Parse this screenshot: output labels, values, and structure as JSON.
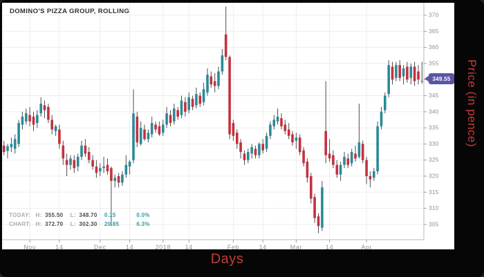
{
  "title": "DOMINO'S PIZZA GROUP, ROLLING",
  "badge": {
    "value": "349.55",
    "color": "#5b55a5"
  },
  "stats": {
    "rows": [
      {
        "label": "TODAY:",
        "h_key": "H:",
        "high": "355.50",
        "l_key": "L:",
        "low": "348.70",
        "change": "0.15",
        "pct": "0.0%"
      },
      {
        "label": "CHART:",
        "h_key": "H:",
        "high": "372.70",
        "l_key": "L:",
        "low": "302.30",
        "change": "20.85",
        "pct": "6.3%"
      }
    ]
  },
  "axes": {
    "x_label": "Days",
    "y_label": "Price (in pence)",
    "accent_color": "#c53c38"
  },
  "chart_data": {
    "type": "candlestick",
    "title": "DOMINO'S PIZZA GROUP, ROLLING",
    "xlabel": "Days",
    "ylabel": "Price (in pence)",
    "ylim": [
      302,
      374
    ],
    "grid": true,
    "last_price": 349.55,
    "today_high": 355.5,
    "today_low": 348.7,
    "today_change": 0.15,
    "today_change_pct": "0.0%",
    "chart_high": 372.7,
    "chart_low": 302.3,
    "chart_range": 20.85,
    "chart_range_pct": "6.3%",
    "colors": {
      "up": "#2a8a99",
      "down": "#c4313f",
      "wick": "#4d4d4d"
    },
    "y_ticks": [
      370,
      365,
      360,
      355,
      350,
      345,
      340,
      335,
      330,
      325,
      320,
      315,
      310,
      305
    ],
    "x_ticks": [
      {
        "label": "Nov",
        "index": 7
      },
      {
        "label": "14",
        "index": 15
      },
      {
        "label": "Dec",
        "index": 26
      },
      {
        "label": "14",
        "index": 34
      },
      {
        "label": "2018",
        "index": 43
      },
      {
        "label": "14",
        "index": 50
      },
      {
        "label": "Feb",
        "index": 62
      },
      {
        "label": "14",
        "index": 70
      },
      {
        "label": "Mar",
        "index": 79
      },
      {
        "label": "14",
        "index": 88
      },
      {
        "label": "Apr",
        "index": 98
      }
    ],
    "ohlc": [
      [
        329.5,
        331,
        326.5,
        327.5
      ],
      [
        327.8,
        330,
        325.5,
        329.3
      ],
      [
        329,
        332,
        327.5,
        330
      ],
      [
        328.5,
        333,
        327,
        331.5
      ],
      [
        330,
        337.5,
        329,
        336.5
      ],
      [
        336,
        340,
        334.5,
        338.5
      ],
      [
        337,
        341,
        336,
        339.5
      ],
      [
        339,
        341.5,
        335.5,
        337
      ],
      [
        338.5,
        340,
        334,
        336
      ],
      [
        336.5,
        340.5,
        335,
        339
      ],
      [
        339.5,
        344.5,
        338.5,
        342.5
      ],
      [
        342,
        343.5,
        338,
        340.5
      ],
      [
        341.5,
        342.5,
        336.5,
        337.5
      ],
      [
        337.5,
        339,
        333,
        334.5
      ],
      [
        334,
        336,
        332.5,
        335.5
      ],
      [
        334.5,
        336,
        328.5,
        330
      ],
      [
        329.5,
        331,
        323.5,
        325.5
      ],
      [
        325,
        327,
        320,
        323.5
      ],
      [
        323.5,
        326.5,
        322,
        325.5
      ],
      [
        325,
        326.5,
        321,
        322.5
      ],
      [
        323,
        327,
        321.5,
        326
      ],
      [
        326,
        331,
        325,
        329.5
      ],
      [
        329.5,
        331.5,
        326,
        327
      ],
      [
        327.5,
        329,
        324,
        325
      ],
      [
        325,
        326.5,
        322,
        323
      ],
      [
        323,
        325,
        319.5,
        321
      ],
      [
        321.5,
        324,
        320,
        322.5
      ],
      [
        322.5,
        326,
        321,
        323
      ],
      [
        323.5,
        325.5,
        320.5,
        321.5
      ],
      [
        322.5,
        323,
        304.5,
        318.5
      ],
      [
        318.5,
        320.5,
        316.5,
        319.5
      ],
      [
        320,
        321,
        316.5,
        318
      ],
      [
        318,
        321.5,
        317,
        320.5
      ],
      [
        320.5,
        326.5,
        319.5,
        323.5
      ],
      [
        323,
        325,
        320.5,
        324.5
      ],
      [
        325,
        347,
        324,
        339.5
      ],
      [
        338.5,
        340,
        329,
        330.5
      ],
      [
        330,
        337,
        329.5,
        335
      ],
      [
        334.5,
        336,
        331,
        331.5
      ],
      [
        331.5,
        334.5,
        330.5,
        333.5
      ],
      [
        333,
        338.5,
        332,
        336.5
      ],
      [
        336,
        337,
        333.5,
        334.5
      ],
      [
        335.5,
        337,
        332.5,
        333
      ],
      [
        333.5,
        337.5,
        332.5,
        336
      ],
      [
        336,
        341.5,
        335,
        339.5
      ],
      [
        339,
        340.5,
        335.5,
        336.5
      ],
      [
        337,
        342.5,
        336,
        341
      ],
      [
        340.5,
        341.5,
        337.5,
        338.5
      ],
      [
        339,
        345,
        338,
        343.5
      ],
      [
        343,
        344.5,
        338.5,
        340
      ],
      [
        340.5,
        346,
        339.5,
        344.5
      ],
      [
        344,
        345,
        340.5,
        341.5
      ],
      [
        342,
        347.5,
        341,
        345.5
      ],
      [
        345,
        346,
        341.5,
        342.5
      ],
      [
        343,
        349,
        342,
        347
      ],
      [
        346,
        353.5,
        345,
        351.5
      ],
      [
        351,
        352.5,
        347.5,
        348.5
      ],
      [
        349.5,
        352,
        346,
        348
      ],
      [
        348,
        354,
        347,
        352.5
      ],
      [
        352.5,
        359.5,
        351.5,
        357.5
      ],
      [
        364,
        372.7,
        356,
        357
      ],
      [
        357,
        357.5,
        331.5,
        333
      ],
      [
        336.5,
        337.5,
        331,
        332.5
      ],
      [
        333.5,
        334.5,
        328.5,
        330
      ],
      [
        330.5,
        331.5,
        325.5,
        327.5
      ],
      [
        327,
        328,
        323.5,
        325
      ],
      [
        325,
        328.5,
        324,
        327.5
      ],
      [
        327,
        330,
        325.5,
        329
      ],
      [
        328.5,
        329.5,
        325.5,
        326.5
      ],
      [
        326.5,
        330.5,
        325.5,
        330
      ],
      [
        330,
        331.5,
        327,
        328
      ],
      [
        328.5,
        333.5,
        327.5,
        332.5
      ],
      [
        332.5,
        337,
        331.5,
        336
      ],
      [
        335.5,
        339,
        334.5,
        337.5
      ],
      [
        337,
        341,
        336,
        338.5
      ],
      [
        338,
        339.5,
        334.5,
        335.5
      ],
      [
        336,
        337.5,
        333,
        334
      ],
      [
        334.5,
        336.5,
        331.5,
        332.5
      ],
      [
        333,
        334,
        329.5,
        330.5
      ],
      [
        331,
        333.5,
        328.5,
        332
      ],
      [
        332,
        333,
        326.5,
        327.5
      ],
      [
        328,
        329,
        323,
        324
      ],
      [
        324.5,
        325.5,
        318,
        319.5
      ],
      [
        320,
        321,
        311.5,
        313
      ],
      [
        313.5,
        314.5,
        305.5,
        307
      ],
      [
        307.5,
        308.5,
        302.3,
        304.5
      ],
      [
        304,
        318.5,
        303,
        316.5
      ],
      [
        334,
        349.5,
        324,
        326.5
      ],
      [
        327,
        331.5,
        324.5,
        325.5
      ],
      [
        326.5,
        328,
        322.5,
        323.5
      ],
      [
        323.5,
        325,
        319.5,
        320.5
      ],
      [
        320.5,
        324.5,
        318.5,
        323.5
      ],
      [
        323.5,
        327.5,
        322.5,
        326
      ],
      [
        325.5,
        327,
        322.5,
        323.5
      ],
      [
        324,
        328.5,
        323,
        327.5
      ],
      [
        327,
        329.5,
        324.5,
        325.5
      ],
      [
        326,
        342.5,
        325.5,
        330.5
      ],
      [
        330,
        331,
        324,
        325
      ],
      [
        325,
        326,
        317.5,
        320
      ],
      [
        320,
        321.5,
        316.5,
        319
      ],
      [
        319.5,
        322.5,
        318.5,
        321.5
      ],
      [
        321.5,
        337,
        320.5,
        335.5
      ],
      [
        335.5,
        341.5,
        334.5,
        340
      ],
      [
        340.5,
        346,
        339.5,
        345
      ],
      [
        345.5,
        356,
        344.5,
        354.5
      ],
      [
        354,
        355.5,
        348.5,
        350
      ],
      [
        350.5,
        355.5,
        349.5,
        354.5
      ],
      [
        354.5,
        356,
        349.5,
        350.5
      ],
      [
        351,
        354.5,
        348.5,
        353.5
      ],
      [
        354,
        355.5,
        349,
        350
      ],
      [
        350.5,
        355,
        348.5,
        354
      ],
      [
        354,
        355.5,
        348,
        349.5
      ],
      [
        352.5,
        354.5,
        348.5,
        350
      ],
      [
        349.4,
        355.5,
        348.7,
        349.55
      ]
    ]
  }
}
